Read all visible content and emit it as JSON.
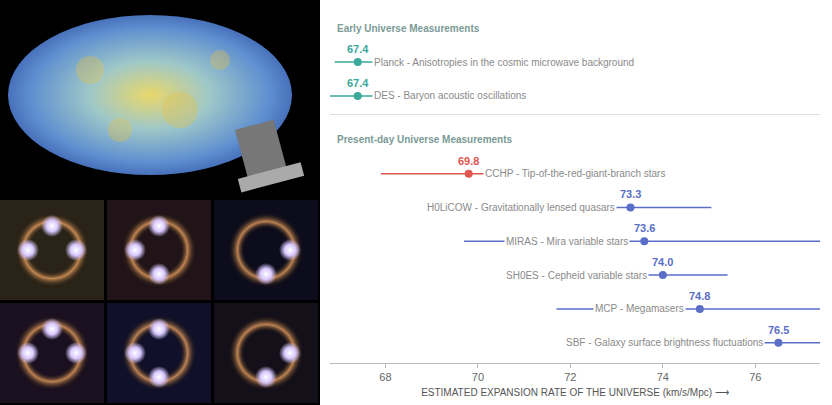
{
  "chart_data": {
    "type": "scatter",
    "marker": "circle",
    "data_labels": true,
    "grid": false,
    "tick_labels": "x",
    "xlabel": "ESTIMATED EXPANSION RATE OF THE UNIVERSE (km/s/Mpc) ⟶",
    "xlim": [
      66.8,
      77.4
    ],
    "xticks": [
      68,
      70,
      72,
      74,
      76
    ],
    "series": [
      {
        "name": "Early Universe Measurements",
        "color": "#3aa89a",
        "categories": [
          "Planck - Anisotropies in the cosmic microwave background",
          "DES - Baryon acoustic oscillations"
        ],
        "values": [
          67.4,
          67.4
        ],
        "value_labels": [
          "67.4",
          "67.4"
        ],
        "errors": [
          0.5,
          1.1
        ]
      },
      {
        "name": "Present-day Universe Measurements",
        "colors": [
          "#e0574f",
          "#5a6ec8",
          "#5a6ec8",
          "#5a6ec8",
          "#5a6ec8",
          "#5a6ec8"
        ],
        "categories": [
          "CCHP - Tip-of-the-red-giant-branch stars",
          "H0LiCOW - Gravitationally lensed quasars",
          "MIRAS - Mira variable stars",
          "SH0ES - Cepheid variable stars",
          "MCP - Megamasers",
          "SBF - Galaxy surface brightness fluctuations"
        ],
        "values": [
          69.8,
          73.3,
          73.6,
          74.0,
          74.8,
          76.5
        ],
        "value_labels": [
          "69.8",
          "73.3",
          "73.6",
          "74.0",
          "74.8",
          "76.5"
        ],
        "errors": [
          1.9,
          1.75,
          3.9,
          1.4,
          3.1,
          4.0
        ]
      }
    ]
  }
}
